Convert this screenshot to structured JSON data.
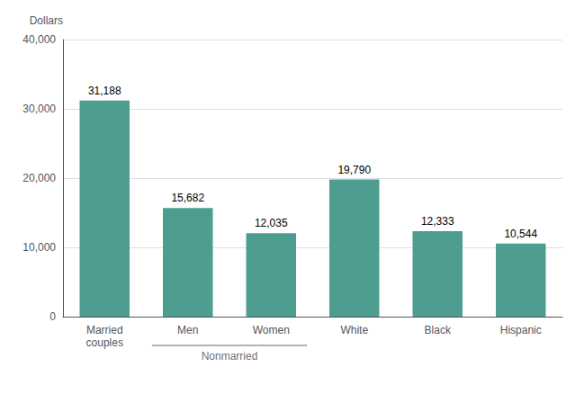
{
  "chart_data": {
    "type": "bar",
    "ylabel": "Dollars",
    "categories": [
      "Married\ncouples",
      "Men",
      "Women",
      "White",
      "Black",
      "Hispanic"
    ],
    "values": [
      31188,
      15682,
      12035,
      19790,
      12333,
      10544
    ],
    "value_labels": [
      "31,188",
      "15,682",
      "12,035",
      "19,790",
      "12,333",
      "10,544"
    ],
    "data_labels": true,
    "color": "#4d9e90",
    "ylim": [
      0,
      40000
    ],
    "yticks": [
      0,
      {
        "value": 10000,
        "label": "10,000"
      },
      {
        "value": 20000,
        "label": "20,000"
      },
      {
        "value": 30000,
        "label": "30,000"
      },
      {
        "value": 40000,
        "label": "40,000"
      }
    ],
    "grid": true,
    "annotations": [
      {
        "text": "Nonmarried",
        "categories": [
          "Men",
          "Women"
        ]
      }
    ]
  }
}
